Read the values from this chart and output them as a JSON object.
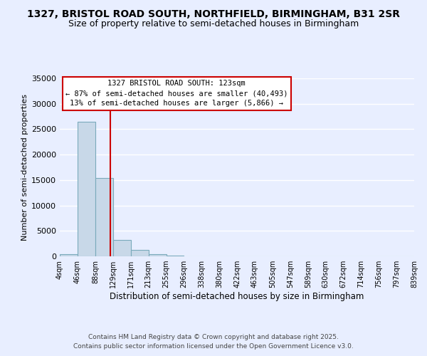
{
  "title": "1327, BRISTOL ROAD SOUTH, NORTHFIELD, BIRMINGHAM, B31 2SR",
  "subtitle": "Size of property relative to semi-detached houses in Birmingham",
  "xlabel": "Distribution of semi-detached houses by size in Birmingham",
  "ylabel": "Number of semi-detached properties",
  "bin_edges": [
    4,
    46,
    88,
    129,
    171,
    213,
    255,
    296,
    338,
    380,
    422,
    463,
    505,
    547,
    589,
    630,
    672,
    714,
    756,
    797,
    839
  ],
  "bar_heights": [
    400,
    26400,
    15400,
    3200,
    1200,
    400,
    100,
    0,
    0,
    0,
    0,
    0,
    0,
    0,
    0,
    0,
    0,
    0,
    0,
    0
  ],
  "bar_color": "#c8d8e8",
  "bar_edge_color": "#7aaabb",
  "property_size": 123,
  "red_line_color": "#cc0000",
  "annotation_title": "1327 BRISTOL ROAD SOUTH: 123sqm",
  "annotation_line1": "← 87% of semi-detached houses are smaller (40,493)",
  "annotation_line2": "13% of semi-detached houses are larger (5,866) →",
  "annotation_box_color": "#ffffff",
  "annotation_box_edge": "#cc0000",
  "ylim": [
    0,
    35000
  ],
  "yticks": [
    0,
    5000,
    10000,
    15000,
    20000,
    25000,
    30000,
    35000
  ],
  "bg_color": "#e8eeff",
  "grid_color": "#ffffff",
  "footer1": "Contains HM Land Registry data © Crown copyright and database right 2025.",
  "footer2": "Contains public sector information licensed under the Open Government Licence v3.0."
}
